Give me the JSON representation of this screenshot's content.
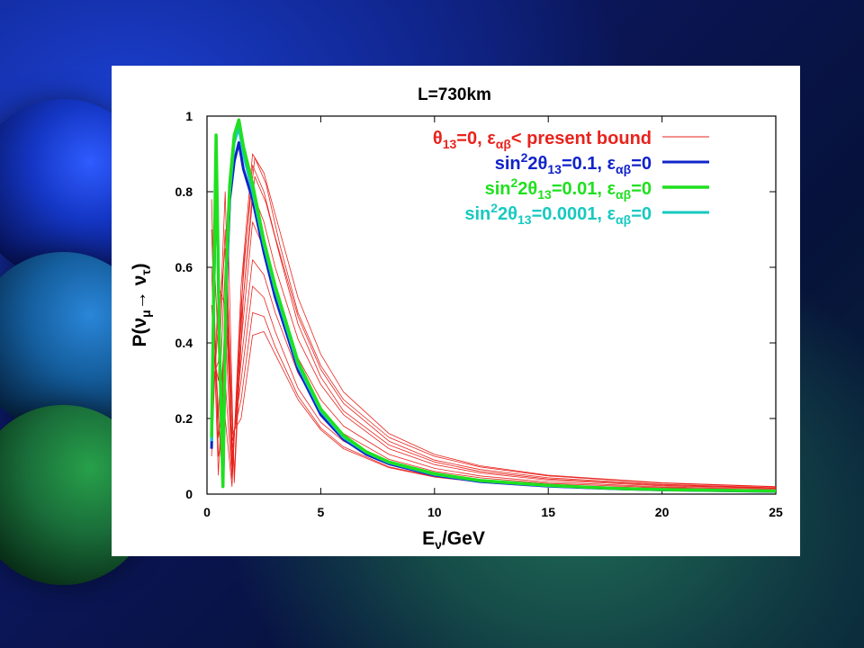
{
  "colors": {
    "red": "#e8231d",
    "blue": "#1023c8",
    "green": "#1fe01f",
    "cyan": "#17c9c0"
  },
  "chart_data": {
    "type": "line",
    "title": "L=730km",
    "xlabel_main": "E",
    "xlabel_sub": "ν",
    "xlabel_rest": "/GeV",
    "ylabel": "P(ν",
    "ylabel_sub1": "μ",
    "ylabel_arrow": "→ ν",
    "ylabel_sub2": "τ",
    "ylabel_close": ")",
    "xlim": [
      0,
      25
    ],
    "ylim": [
      0,
      1
    ],
    "xticks": [
      "0",
      "5",
      "10",
      "15",
      "20",
      "25"
    ],
    "yticks": [
      "0",
      "0.2",
      "0.4",
      "0.6",
      "0.8",
      "1"
    ],
    "grid": false,
    "legend_position": "top-right",
    "legend": [
      {
        "pre": "θ",
        "sub": "13",
        "mid": "=0, ε",
        "sub2": "αβ",
        "post": "< present bound",
        "color": "#e8231d"
      },
      {
        "pre": "sin",
        "sup": "2",
        "pre2": "2θ",
        "sub": "13",
        "mid": "=0.1, ε",
        "sub2": "αβ",
        "post": "=0",
        "color": "#1023c8"
      },
      {
        "pre": "sin",
        "sup": "2",
        "pre2": "2θ",
        "sub": "13",
        "mid": "=0.01, ε",
        "sub2": "αβ",
        "post": "=0",
        "color": "#1fe01f"
      },
      {
        "pre": "sin",
        "sup": "2",
        "pre2": "2θ",
        "sub": "13",
        "mid": "=0.0001, ε",
        "sub2": "αβ",
        "post": "=0",
        "color": "#17c9c0"
      }
    ],
    "series": [
      {
        "color": "#1023c8",
        "width": 3,
        "x": [
          0.2,
          0.4,
          0.55,
          0.7,
          0.85,
          1.0,
          1.2,
          1.4,
          1.6,
          2,
          2.5,
          3,
          4,
          5,
          6,
          7,
          8,
          10,
          12,
          15,
          18,
          20,
          25
        ],
        "y": [
          0.12,
          0.9,
          0.4,
          0.02,
          0.55,
          0.78,
          0.88,
          0.93,
          0.86,
          0.78,
          0.64,
          0.52,
          0.33,
          0.21,
          0.145,
          0.105,
          0.08,
          0.05,
          0.033,
          0.021,
          0.014,
          0.011,
          0.007
        ]
      },
      {
        "color": "#1fe01f",
        "width": 3.5,
        "x": [
          0.2,
          0.4,
          0.55,
          0.7,
          0.85,
          1.0,
          1.2,
          1.4,
          1.6,
          2,
          2.5,
          3,
          4,
          5,
          6,
          7,
          8,
          10,
          12,
          15,
          18,
          20,
          25
        ],
        "y": [
          0.15,
          0.95,
          0.4,
          0.02,
          0.6,
          0.82,
          0.95,
          0.99,
          0.92,
          0.82,
          0.67,
          0.55,
          0.35,
          0.225,
          0.155,
          0.112,
          0.085,
          0.054,
          0.036,
          0.023,
          0.015,
          0.012,
          0.008
        ]
      },
      {
        "color": "#17c9c0",
        "width": 3,
        "x": [
          0.2,
          0.4,
          0.55,
          0.7,
          0.85,
          1.0,
          1.2,
          1.4,
          1.6,
          2,
          2.5,
          3,
          4,
          5,
          6,
          7,
          8,
          10,
          12,
          15,
          18,
          20,
          25
        ],
        "y": [
          0.14,
          0.93,
          0.38,
          0.02,
          0.58,
          0.8,
          0.93,
          0.97,
          0.9,
          0.8,
          0.66,
          0.54,
          0.34,
          0.22,
          0.15,
          0.11,
          0.083,
          0.052,
          0.035,
          0.022,
          0.015,
          0.012,
          0.008
        ]
      },
      {
        "color": "#e8231d",
        "width": 0.8,
        "x": [
          0.2,
          0.5,
          0.8,
          1.1,
          1.5,
          2.0,
          2.5,
          3,
          4,
          5,
          6,
          8,
          10,
          12,
          15,
          20,
          25
        ],
        "y": [
          0.78,
          0.1,
          0.2,
          0.02,
          0.55,
          0.9,
          0.85,
          0.74,
          0.52,
          0.37,
          0.27,
          0.16,
          0.105,
          0.075,
          0.05,
          0.03,
          0.02
        ]
      },
      {
        "color": "#e8231d",
        "width": 0.8,
        "x": [
          0.2,
          0.5,
          0.8,
          1.1,
          1.5,
          2.0,
          2.5,
          3,
          4,
          5,
          6,
          8,
          10,
          12,
          15,
          20,
          25
        ],
        "y": [
          0.7,
          0.15,
          0.3,
          0.04,
          0.5,
          0.87,
          0.8,
          0.68,
          0.47,
          0.33,
          0.24,
          0.14,
          0.09,
          0.065,
          0.043,
          0.026,
          0.017
        ]
      },
      {
        "color": "#e8231d",
        "width": 0.8,
        "x": [
          0.2,
          0.5,
          0.8,
          1.1,
          1.5,
          2.0,
          2.5,
          3,
          4,
          5,
          6,
          8,
          10,
          12,
          15,
          20,
          25
        ],
        "y": [
          0.6,
          0.05,
          0.45,
          0.06,
          0.45,
          0.8,
          0.72,
          0.6,
          0.41,
          0.29,
          0.21,
          0.12,
          0.078,
          0.056,
          0.037,
          0.022,
          0.015
        ]
      },
      {
        "color": "#e8231d",
        "width": 0.8,
        "x": [
          0.2,
          0.5,
          0.8,
          1.1,
          1.5,
          2.0,
          2.5,
          3,
          4,
          5,
          6,
          8,
          10,
          12,
          15,
          20,
          25
        ],
        "y": [
          0.5,
          0.2,
          0.6,
          0.08,
          0.4,
          0.72,
          0.65,
          0.54,
          0.36,
          0.25,
          0.18,
          0.105,
          0.068,
          0.048,
          0.032,
          0.019,
          0.013
        ]
      },
      {
        "color": "#e8231d",
        "width": 0.8,
        "x": [
          0.2,
          0.5,
          0.8,
          1.1,
          1.5,
          2.0,
          2.5,
          3,
          4,
          5,
          6,
          8,
          10,
          12,
          15,
          20,
          25
        ],
        "y": [
          0.4,
          0.3,
          0.7,
          0.1,
          0.35,
          0.62,
          0.58,
          0.48,
          0.32,
          0.22,
          0.16,
          0.092,
          0.06,
          0.043,
          0.028,
          0.017,
          0.011
        ]
      },
      {
        "color": "#e8231d",
        "width": 0.8,
        "x": [
          0.2,
          0.5,
          0.8,
          1.1,
          1.5,
          2.0,
          2.5,
          3,
          4,
          5,
          6,
          8,
          10,
          12,
          15,
          20,
          25
        ],
        "y": [
          0.3,
          0.35,
          0.8,
          0.12,
          0.3,
          0.55,
          0.52,
          0.43,
          0.28,
          0.19,
          0.14,
          0.08,
          0.052,
          0.037,
          0.024,
          0.015,
          0.01
        ]
      },
      {
        "color": "#e8231d",
        "width": 0.8,
        "x": [
          0.2,
          0.5,
          0.8,
          1.1,
          1.5,
          2.0,
          2.5,
          3,
          4,
          5,
          6,
          8,
          10,
          12,
          15,
          20,
          25
        ],
        "y": [
          0.2,
          0.45,
          0.65,
          0.14,
          0.25,
          0.48,
          0.47,
          0.39,
          0.26,
          0.175,
          0.125,
          0.072,
          0.047,
          0.033,
          0.022,
          0.013,
          0.009
        ]
      },
      {
        "color": "#e8231d",
        "width": 0.8,
        "x": [
          0.2,
          0.5,
          0.8,
          1.1,
          1.5,
          2.0,
          2.5,
          3,
          4,
          5,
          6,
          8,
          10,
          12,
          15,
          20,
          25
        ],
        "y": [
          0.1,
          0.55,
          0.5,
          0.16,
          0.2,
          0.42,
          0.43,
          0.37,
          0.25,
          0.17,
          0.12,
          0.07,
          0.045,
          0.032,
          0.021,
          0.013,
          0.009
        ]
      },
      {
        "color": "#e8231d",
        "width": 0.8,
        "x": [
          0.3,
          0.6,
          0.9,
          1.2,
          1.6,
          2.1,
          2.6,
          3.2,
          4,
          5,
          6,
          8,
          10,
          12,
          15,
          20,
          25
        ],
        "y": [
          0.65,
          0.25,
          0.55,
          0.05,
          0.6,
          0.89,
          0.82,
          0.66,
          0.48,
          0.34,
          0.25,
          0.15,
          0.1,
          0.072,
          0.048,
          0.029,
          0.019
        ]
      },
      {
        "color": "#e8231d",
        "width": 0.8,
        "x": [
          0.3,
          0.6,
          0.9,
          1.2,
          1.6,
          2.1,
          2.6,
          3.2,
          4,
          5,
          6,
          8,
          10,
          12,
          15,
          20,
          25
        ],
        "y": [
          0.45,
          0.1,
          0.75,
          0.03,
          0.52,
          0.84,
          0.77,
          0.63,
          0.45,
          0.31,
          0.22,
          0.13,
          0.085,
          0.06,
          0.04,
          0.024,
          0.016
        ]
      }
    ]
  }
}
